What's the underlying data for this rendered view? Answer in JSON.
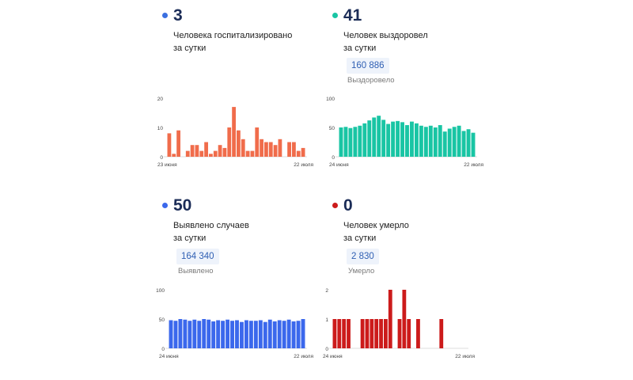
{
  "panels": [
    {
      "id": "hospitalized",
      "value": "3",
      "caption_line1": "Человека госпитализировано",
      "caption_line2": "за сутки",
      "total": "",
      "total_label": "",
      "color": "#f06c4b",
      "dot_color": "#3a6fe0"
    },
    {
      "id": "recovered",
      "value": "41",
      "caption_line1": "Человек выздоровел",
      "caption_line2": "за сутки",
      "total": "160 886",
      "total_label": "Выздоровело",
      "color": "#19c5a4",
      "dot_color": "#19c5a4"
    },
    {
      "id": "cases",
      "value": "50",
      "caption_line1": "Выявлено случаев",
      "caption_line2": "за сутки",
      "total": "164 340",
      "total_label": "Выявлено",
      "color": "#3b68ec",
      "dot_color": "#3b68ec"
    },
    {
      "id": "deaths",
      "value": "0",
      "caption_line1": "Человек умерло",
      "caption_line2": "за сутки",
      "total": "2 830",
      "total_label": "Умерло",
      "color": "#cc1b1b",
      "dot_color": "#cc1b1b"
    }
  ],
  "chart_data": [
    {
      "type": "bar",
      "series": "hospitalized",
      "y_ticks": [
        "20",
        "10",
        "0"
      ],
      "ylim": [
        0,
        20
      ],
      "x_start_label": "23 июня",
      "x_end_label": "22 июля",
      "values": [
        8,
        1,
        9,
        0,
        2,
        4,
        4,
        2,
        5,
        1,
        2,
        4,
        3,
        10,
        17,
        9,
        6,
        2,
        2,
        10,
        6,
        5,
        5,
        4,
        6,
        0,
        5,
        5,
        2,
        3
      ]
    },
    {
      "type": "bar",
      "series": "recovered",
      "y_ticks": [
        "100",
        "50",
        "0"
      ],
      "ylim": [
        0,
        100
      ],
      "x_start_label": "24 июня",
      "x_end_label": "22 июля",
      "values": [
        50,
        51,
        49,
        51,
        53,
        57,
        62,
        67,
        70,
        63,
        56,
        60,
        61,
        59,
        54,
        60,
        57,
        53,
        51,
        53,
        50,
        54,
        43,
        48,
        51,
        53,
        44,
        47,
        41
      ]
    },
    {
      "type": "bar",
      "series": "cases",
      "y_ticks": [
        "100",
        "50",
        "0"
      ],
      "ylim": [
        0,
        100
      ],
      "x_start_label": "24 июня",
      "x_end_label": "22 июля",
      "values": [
        48,
        47,
        50,
        49,
        47,
        49,
        47,
        50,
        49,
        46,
        48,
        47,
        49,
        47,
        48,
        45,
        48,
        47,
        47,
        48,
        45,
        49,
        46,
        48,
        47,
        49,
        46,
        47,
        50
      ]
    },
    {
      "type": "bar",
      "series": "deaths",
      "y_ticks": [
        "2",
        "1",
        "0"
      ],
      "ylim": [
        0,
        2
      ],
      "x_start_label": "24 июня",
      "x_end_label": "22 июля",
      "values": [
        1,
        1,
        1,
        1,
        0,
        0,
        1,
        1,
        1,
        1,
        1,
        1,
        2,
        0,
        1,
        2,
        1,
        0,
        1,
        0,
        0,
        0,
        0,
        1,
        0,
        0,
        0,
        0,
        0
      ]
    }
  ]
}
